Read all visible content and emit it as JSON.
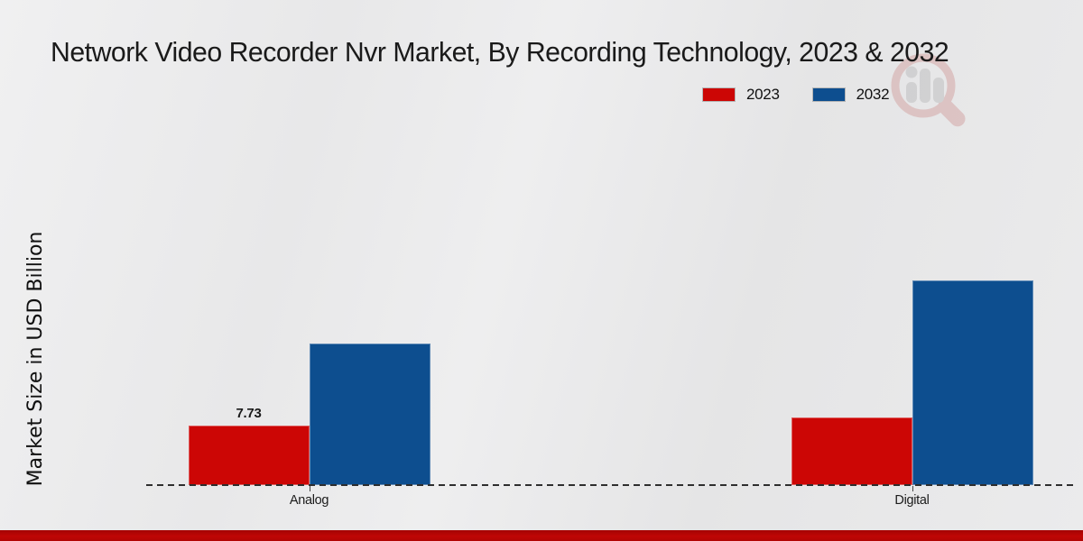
{
  "title": "Network Video Recorder Nvr Market, By Recording Technology, 2023 & 2032",
  "y_axis_label": "Market Size in USD Billion",
  "icons": {
    "watermark": "magnifier-bar-chart-logo"
  },
  "colors": {
    "series_2023": "#cc0605",
    "series_2032": "#0d4e8f",
    "footer_strip": "#bb0605",
    "background": "#e9e9ea",
    "text": "#1a1a1a"
  },
  "legend": {
    "position": "top-right",
    "items": [
      {
        "label": "2023",
        "color": "#cc0605"
      },
      {
        "label": "2032",
        "color": "#0d4e8f"
      }
    ]
  },
  "chart_data": {
    "type": "bar",
    "title": "Network Video Recorder Nvr Market, By Recording Technology, 2023 & 2032",
    "categories": [
      "Analog",
      "Digital"
    ],
    "series": [
      {
        "name": "2023",
        "color": "#cc0605",
        "values": [
          7.73,
          8.8
        ],
        "data_labels": [
          "7.73",
          ""
        ]
      },
      {
        "name": "2032",
        "color": "#0d4e8f",
        "values": [
          18.4,
          26.6
        ],
        "data_labels": [
          "",
          ""
        ]
      }
    ],
    "xlabel": "",
    "ylabel": "Market Size in USD Billion",
    "ylim": [
      0,
      45
    ],
    "grid": false,
    "y_ticks_visible": false,
    "legend_position": "top-right",
    "baseline_style": "dashed"
  }
}
